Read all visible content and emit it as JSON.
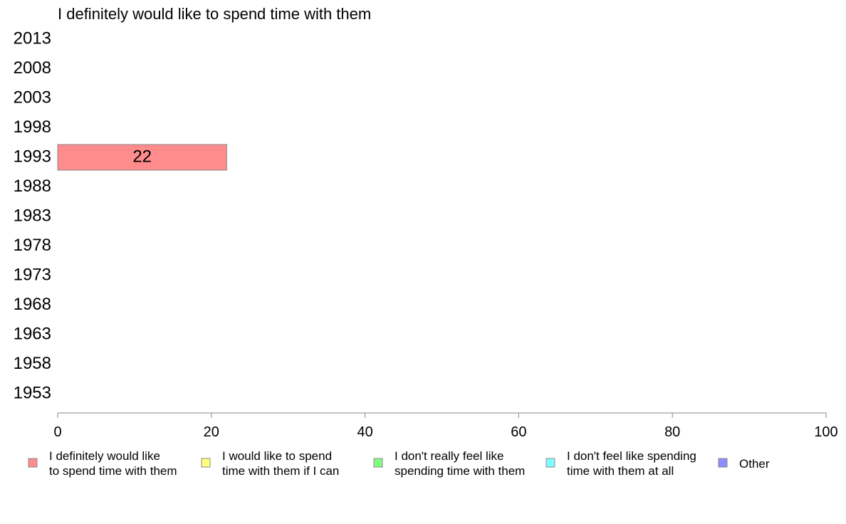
{
  "chart_data": {
    "type": "bar",
    "orientation": "horizontal",
    "title": "I definitely would like to spend time with them",
    "categories": [
      "2013",
      "2008",
      "2003",
      "1998",
      "1993",
      "1988",
      "1983",
      "1978",
      "1973",
      "1968",
      "1963",
      "1958",
      "1953"
    ],
    "series": [
      {
        "name": "I definitely would like to spend time with them",
        "color": "#ff8c8c",
        "values": [
          null,
          null,
          null,
          null,
          22,
          null,
          null,
          null,
          null,
          null,
          null,
          null,
          null
        ]
      }
    ],
    "xlim": [
      0,
      100
    ],
    "xticks": [
      "0",
      "20",
      "40",
      "60",
      "80",
      "100"
    ],
    "grid": false,
    "legend_position": "bottom",
    "legend": [
      {
        "line1": "I definitely would like",
        "line2": "to spend time with them",
        "color": "#ff8c8c"
      },
      {
        "line1": "I would like to spend",
        "line2": "time with them if I can",
        "color": "#ffff80"
      },
      {
        "line1": "I don't really feel like",
        "line2": "spending time with them",
        "color": "#80ff80"
      },
      {
        "line1": "I don't feel like spending",
        "line2": "time with them at all",
        "color": "#80ffff"
      },
      {
        "line1": "Other",
        "line2": "",
        "color": "#8c8cff"
      }
    ]
  }
}
